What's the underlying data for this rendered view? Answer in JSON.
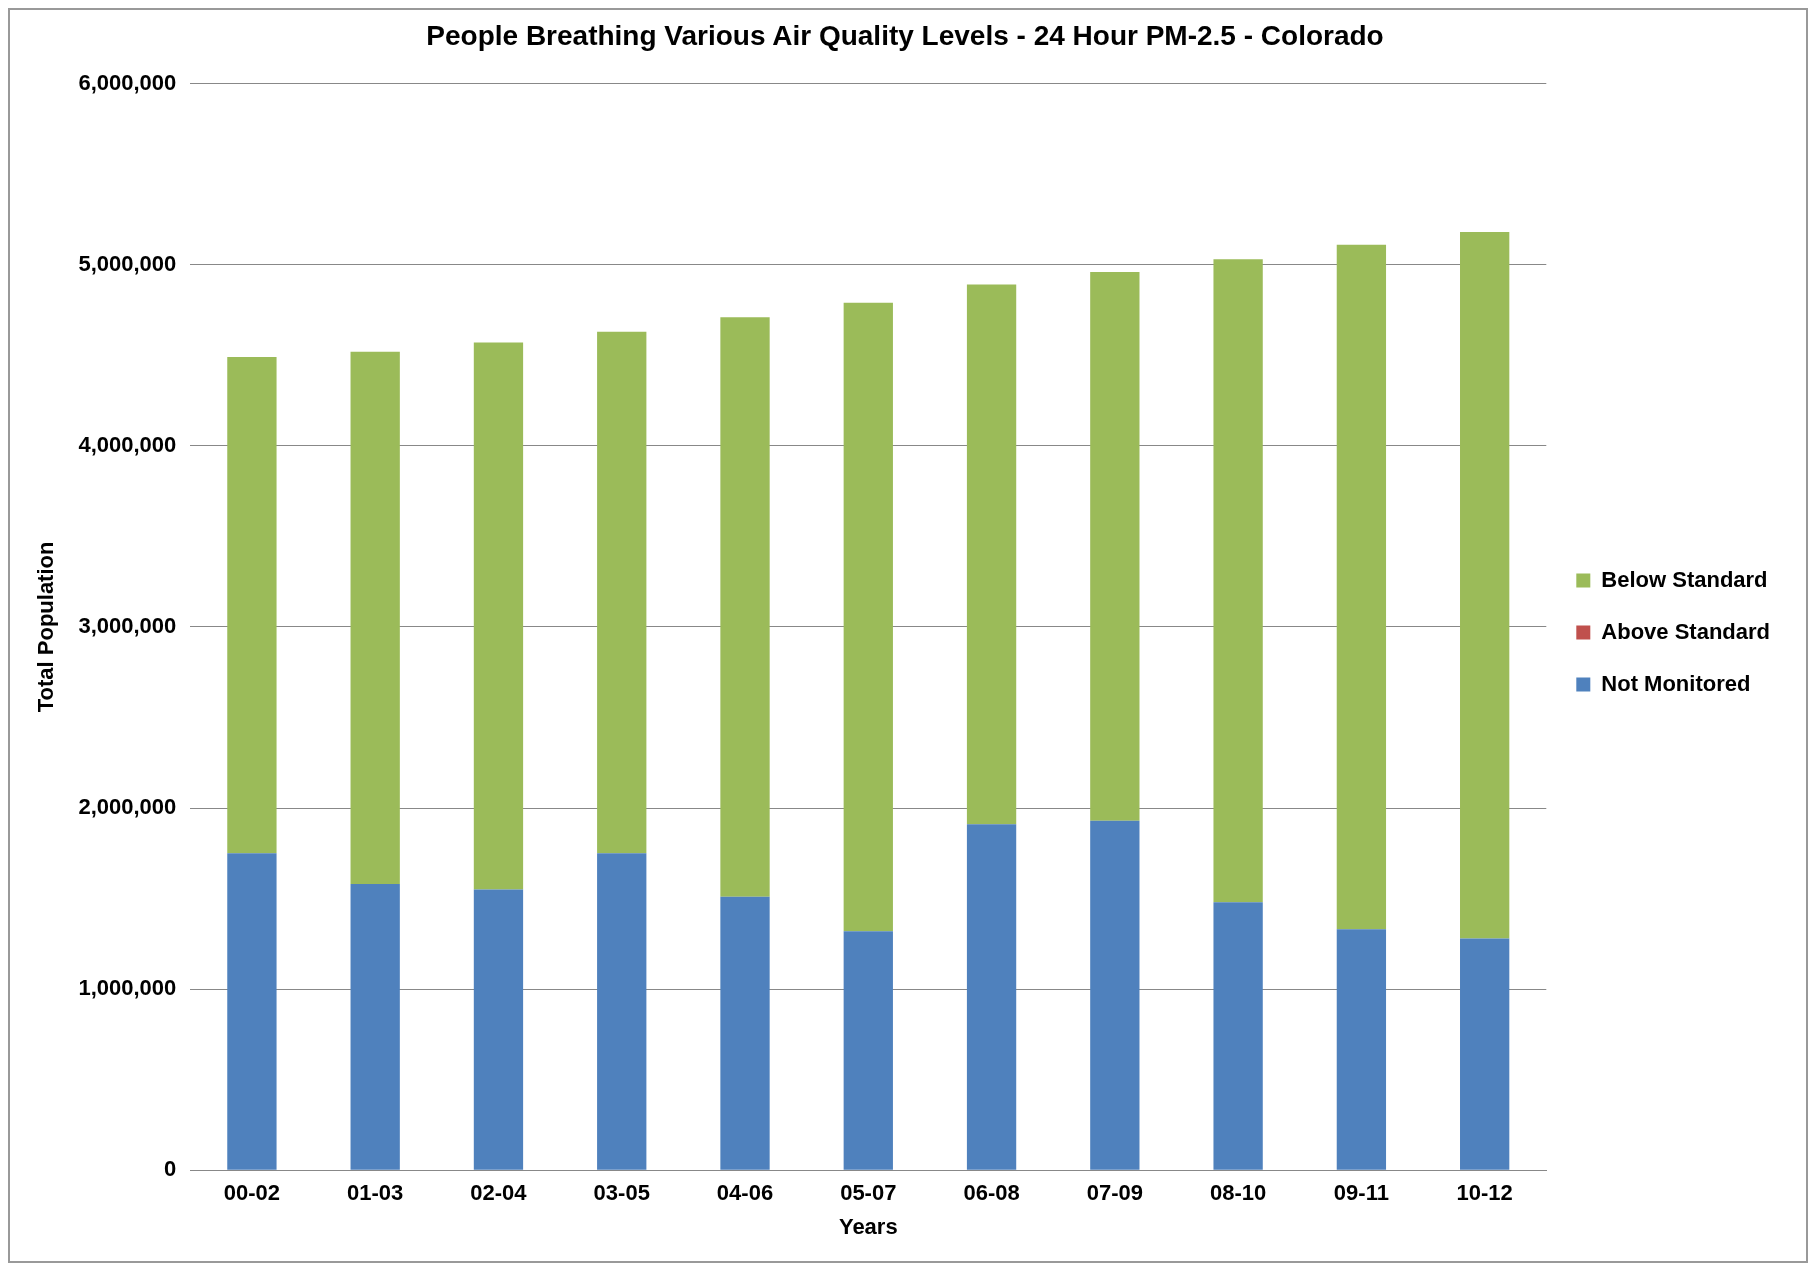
{
  "chart_data": {
    "type": "bar",
    "title": "People Breathing Various Air Quality Levels - 24 Hour PM-2.5 - Colorado",
    "xlabel": "Years",
    "ylabel": "Total Population",
    "categories": [
      "00-02",
      "01-03",
      "02-04",
      "03-05",
      "04-06",
      "05-07",
      "06-08",
      "07-09",
      "08-10",
      "09-11",
      "10-12"
    ],
    "series": [
      {
        "name": "Not Monitored",
        "color": "#4f81bd",
        "values": [
          1750000,
          1580000,
          1550000,
          1750000,
          1510000,
          1320000,
          1910000,
          1930000,
          1480000,
          1330000,
          1280000
        ]
      },
      {
        "name": "Above Standard",
        "color": "#c0504d",
        "values": [
          0,
          0,
          0,
          0,
          0,
          0,
          0,
          0,
          0,
          0,
          0
        ]
      },
      {
        "name": "Below Standard",
        "color": "#9bbb59",
        "values": [
          2740000,
          2940000,
          3020000,
          2880000,
          3200000,
          3470000,
          2980000,
          3030000,
          3550000,
          3780000,
          3900000
        ]
      }
    ],
    "stacked": true,
    "ylim": [
      0,
      6000000
    ],
    "yticks": [
      0,
      {
        "value": 1000000,
        "label": "1,000,000"
      },
      {
        "value": 2000000,
        "label": "2,000,000"
      },
      {
        "value": 3000000,
        "label": "3,000,000"
      },
      {
        "value": 4000000,
        "label": "4,000,000"
      },
      {
        "value": 5000000,
        "label": "5,000,000"
      },
      {
        "value": 6000000,
        "label": "6,000,000"
      }
    ],
    "grid": "y",
    "legend": "right"
  }
}
